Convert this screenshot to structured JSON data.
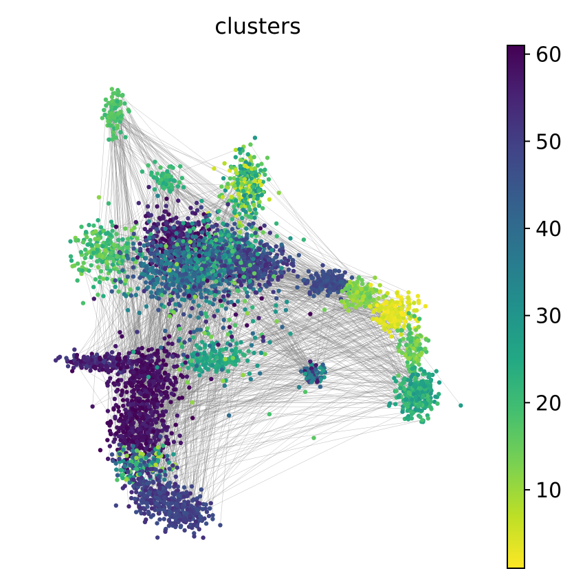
{
  "chart_data": {
    "type": "scatter",
    "title": "clusters",
    "xlabel": "",
    "ylabel": "",
    "grid": false,
    "frame": false,
    "color_by": "clusters",
    "colormap": "viridis",
    "colormap_reversed": true,
    "colorbar": {
      "position": "right",
      "min": 1,
      "max": 61,
      "ticks": [
        10,
        20,
        30,
        40,
        50,
        60
      ],
      "tick_labels": [
        "10",
        "20",
        "30",
        "40",
        "50",
        "60"
      ]
    },
    "edge_color": "#808080",
    "xlim": [
      0,
      100
    ],
    "ylim": [
      0,
      100
    ],
    "groups": [
      {
        "cx": 14.5,
        "cy": 94.5,
        "sx": 1.4,
        "sy": 2.6,
        "n": 90,
        "cmin": 15,
        "cmax": 22
      },
      {
        "cx": 27.0,
        "cy": 79.0,
        "sx": 1.6,
        "sy": 1.6,
        "n": 70,
        "cmin": 18,
        "cmax": 25
      },
      {
        "cx": 46.5,
        "cy": 77.5,
        "sx": 2.6,
        "sy": 4.0,
        "n": 260,
        "cmin": 3,
        "cmax": 32
      },
      {
        "cx": 12.0,
        "cy": 62.5,
        "sx": 4.5,
        "sy": 3.5,
        "n": 230,
        "cmin": 12,
        "cmax": 24
      },
      {
        "cx": 30.0,
        "cy": 65.0,
        "sx": 4.5,
        "sy": 3.5,
        "n": 320,
        "cmin": 52,
        "cmax": 61
      },
      {
        "cx": 32.0,
        "cy": 58.0,
        "sx": 6.0,
        "sy": 4.0,
        "n": 480,
        "cmin": 32,
        "cmax": 48
      },
      {
        "cx": 42.0,
        "cy": 62.0,
        "sx": 5.0,
        "sy": 4.0,
        "n": 330,
        "cmin": 16,
        "cmax": 50
      },
      {
        "cx": 50.0,
        "cy": 59.5,
        "sx": 4.0,
        "sy": 2.5,
        "n": 260,
        "cmin": 44,
        "cmax": 54
      },
      {
        "cx": 67.0,
        "cy": 55.5,
        "sx": 2.5,
        "sy": 1.5,
        "n": 160,
        "cmin": 44,
        "cmax": 50
      },
      {
        "cx": 75.5,
        "cy": 52.5,
        "sx": 2.5,
        "sy": 1.5,
        "n": 140,
        "cmin": 8,
        "cmax": 16
      },
      {
        "cx": 83.5,
        "cy": 48.5,
        "sx": 2.5,
        "sy": 2.0,
        "n": 170,
        "cmin": 1,
        "cmax": 6
      },
      {
        "cx": 88.0,
        "cy": 40.0,
        "sx": 1.5,
        "sy": 3.0,
        "n": 120,
        "cmin": 10,
        "cmax": 20
      },
      {
        "cx": 89.0,
        "cy": 29.5,
        "sx": 2.5,
        "sy": 2.5,
        "n": 260,
        "cmin": 18,
        "cmax": 30
      },
      {
        "cx": 63.5,
        "cy": 34.5,
        "sx": 1.5,
        "sy": 1.5,
        "n": 80,
        "cmin": 26,
        "cmax": 58
      },
      {
        "cx": 39.5,
        "cy": 38.0,
        "sx": 3.5,
        "sy": 2.0,
        "n": 130,
        "cmin": 22,
        "cmax": 30
      },
      {
        "cx": 11.0,
        "cy": 37.0,
        "sx": 5.0,
        "sy": 1.0,
        "n": 170,
        "cmin": 50,
        "cmax": 60
      },
      {
        "cx": 22.5,
        "cy": 33.0,
        "sx": 4.0,
        "sy": 4.0,
        "n": 380,
        "cmin": 56,
        "cmax": 61
      },
      {
        "cx": 20.5,
        "cy": 21.0,
        "sx": 3.5,
        "sy": 3.5,
        "n": 320,
        "cmin": 55,
        "cmax": 61
      },
      {
        "cx": 21.0,
        "cy": 13.5,
        "sx": 3.5,
        "sy": 2.0,
        "n": 160,
        "cmin": 8,
        "cmax": 55
      },
      {
        "cx": 25.0,
        "cy": 6.5,
        "sx": 3.5,
        "sy": 2.5,
        "n": 230,
        "cmin": 46,
        "cmax": 54
      },
      {
        "cx": 32.0,
        "cy": 2.5,
        "sx": 3.0,
        "sy": 2.0,
        "n": 200,
        "cmin": 46,
        "cmax": 53
      },
      {
        "cx": 38.0,
        "cy": 50.0,
        "sx": 10.0,
        "sy": 10.0,
        "n": 220,
        "cmin": 10,
        "cmax": 61
      }
    ]
  }
}
